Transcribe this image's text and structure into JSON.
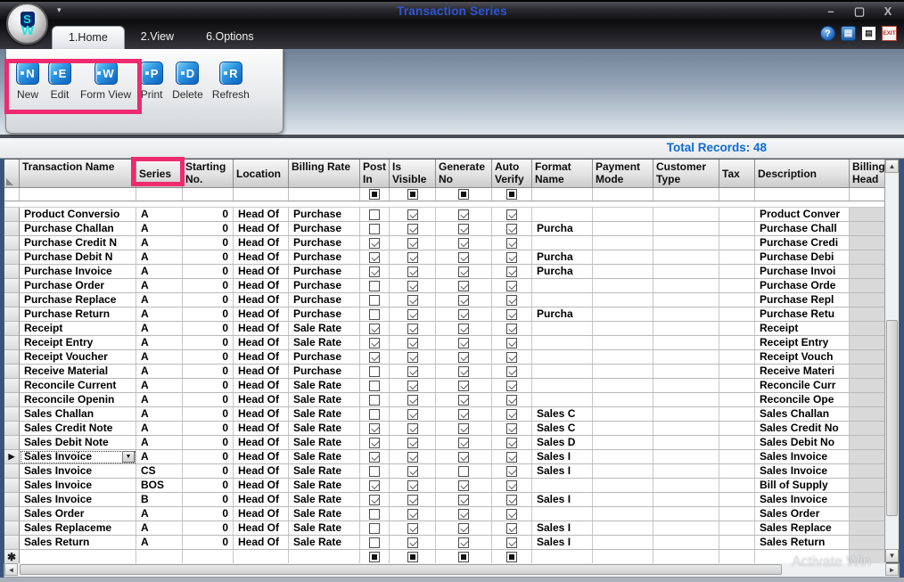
{
  "window": {
    "title": "Transaction Series",
    "controls": {
      "minimize": "–",
      "maximize": "▢",
      "close": "X"
    },
    "qat_arrow": "▾",
    "logo_letters": {
      "top": "S",
      "bottom": "W"
    }
  },
  "tabs": [
    {
      "label": "1.Home",
      "active": true
    },
    {
      "label": "2.View",
      "active": false
    },
    {
      "label": "6.Options",
      "active": false
    }
  ],
  "quick_icons": [
    {
      "name": "help-icon",
      "glyph": "?"
    },
    {
      "name": "viewer-icon",
      "glyph": "▤"
    },
    {
      "name": "document-icon",
      "glyph": "▤"
    },
    {
      "name": "exit-icon",
      "glyph": "EXIT"
    }
  ],
  "toolbar": {
    "buttons": [
      {
        "label": "New",
        "letter": "N"
      },
      {
        "label": "Edit",
        "letter": "E"
      },
      {
        "label": "Form View",
        "letter": "W"
      },
      {
        "label": "Print",
        "letter": "P"
      },
      {
        "label": "Delete",
        "letter": "D"
      },
      {
        "label": "Refresh",
        "letter": "R"
      }
    ]
  },
  "records_summary": "Total Records: 48",
  "grid": {
    "columns": [
      {
        "id": "indicator",
        "label": ""
      },
      {
        "id": "name",
        "label": "Transaction Name"
      },
      {
        "id": "series",
        "label": "Series"
      },
      {
        "id": "starting_no",
        "label": "Starting No."
      },
      {
        "id": "location",
        "label": "Location"
      },
      {
        "id": "billing_rate",
        "label": "Billing Rate"
      },
      {
        "id": "post_in",
        "label": "Post In"
      },
      {
        "id": "is_visible",
        "label": "Is Visible"
      },
      {
        "id": "generate_no",
        "label": "Generate No"
      },
      {
        "id": "auto_verify",
        "label": "Auto Verify"
      },
      {
        "id": "format_name",
        "label": "Format Name"
      },
      {
        "id": "payment_mode",
        "label": "Payment Mode"
      },
      {
        "id": "customer_type",
        "label": "Customer Type"
      },
      {
        "id": "tax",
        "label": "Tax"
      },
      {
        "id": "description",
        "label": "Description"
      },
      {
        "id": "billing_head",
        "label": "Billing Head"
      }
    ],
    "checkbox_columns": [
      "post_in",
      "is_visible",
      "generate_no",
      "auto_verify"
    ],
    "new_row_marker": "✱",
    "rows": [
      {
        "name": "Product Conversio",
        "series": "A",
        "starting_no": "0",
        "location": "Head Of",
        "billing_rate": "Purchase",
        "post_in": false,
        "is_visible": true,
        "generate_no": true,
        "auto_verify": true,
        "format_name": "",
        "payment_mode": "",
        "customer_type": "",
        "tax": "",
        "description": "Product Conver",
        "selected": false
      },
      {
        "name": "Purchase Challan",
        "series": "A",
        "starting_no": "0",
        "location": "Head Of",
        "billing_rate": "Purchase",
        "post_in": false,
        "is_visible": true,
        "generate_no": true,
        "auto_verify": true,
        "format_name": "Purcha",
        "payment_mode": "",
        "customer_type": "",
        "tax": "",
        "description": "Purchase Chall",
        "selected": false
      },
      {
        "name": "Purchase Credit N",
        "series": "A",
        "starting_no": "0",
        "location": "Head Of",
        "billing_rate": "Purchase",
        "post_in": true,
        "is_visible": true,
        "generate_no": true,
        "auto_verify": true,
        "format_name": "",
        "payment_mode": "",
        "customer_type": "",
        "tax": "",
        "description": "Purchase Credi",
        "selected": false
      },
      {
        "name": "Purchase Debit N",
        "series": "A",
        "starting_no": "0",
        "location": "Head Of",
        "billing_rate": "Purchase",
        "post_in": true,
        "is_visible": true,
        "generate_no": true,
        "auto_verify": true,
        "format_name": "Purcha",
        "payment_mode": "",
        "customer_type": "",
        "tax": "",
        "description": "Purchase Debi",
        "selected": false
      },
      {
        "name": "Purchase Invoice",
        "series": "A",
        "starting_no": "0",
        "location": "Head Of",
        "billing_rate": "Purchase",
        "post_in": true,
        "is_visible": true,
        "generate_no": true,
        "auto_verify": true,
        "format_name": "Purcha",
        "payment_mode": "",
        "customer_type": "",
        "tax": "",
        "description": "Purchase Invoi",
        "selected": false
      },
      {
        "name": "Purchase Order",
        "series": "A",
        "starting_no": "0",
        "location": "Head Of",
        "billing_rate": "Purchase",
        "post_in": false,
        "is_visible": true,
        "generate_no": true,
        "auto_verify": true,
        "format_name": "",
        "payment_mode": "",
        "customer_type": "",
        "tax": "",
        "description": "Purchase Orde",
        "selected": false
      },
      {
        "name": "Purchase Replace",
        "series": "A",
        "starting_no": "0",
        "location": "Head Of",
        "billing_rate": "Purchase",
        "post_in": false,
        "is_visible": true,
        "generate_no": true,
        "auto_verify": true,
        "format_name": "",
        "payment_mode": "",
        "customer_type": "",
        "tax": "",
        "description": "Purchase Repl",
        "selected": false
      },
      {
        "name": "Purchase Return",
        "series": "A",
        "starting_no": "0",
        "location": "Head Of",
        "billing_rate": "Purchase",
        "post_in": false,
        "is_visible": true,
        "generate_no": true,
        "auto_verify": true,
        "format_name": "Purcha",
        "payment_mode": "",
        "customer_type": "",
        "tax": "",
        "description": "Purchase Retu",
        "selected": false
      },
      {
        "name": "Receipt",
        "series": "A",
        "starting_no": "0",
        "location": "Head Of",
        "billing_rate": "Sale Rate",
        "post_in": true,
        "is_visible": true,
        "generate_no": true,
        "auto_verify": true,
        "format_name": "",
        "payment_mode": "",
        "customer_type": "",
        "tax": "",
        "description": "Receipt",
        "selected": false
      },
      {
        "name": "Receipt Entry",
        "series": "A",
        "starting_no": "0",
        "location": "Head Of",
        "billing_rate": "Sale Rate",
        "post_in": true,
        "is_visible": true,
        "generate_no": true,
        "auto_verify": true,
        "format_name": "",
        "payment_mode": "",
        "customer_type": "",
        "tax": "",
        "description": "Receipt Entry",
        "selected": false
      },
      {
        "name": "Receipt Voucher",
        "series": "A",
        "starting_no": "0",
        "location": "Head Of",
        "billing_rate": "Purchase",
        "post_in": true,
        "is_visible": true,
        "generate_no": true,
        "auto_verify": true,
        "format_name": "",
        "payment_mode": "",
        "customer_type": "",
        "tax": "",
        "description": "Receipt Vouch",
        "selected": false
      },
      {
        "name": "Receive Material",
        "series": "A",
        "starting_no": "0",
        "location": "Head Of",
        "billing_rate": "Purchase",
        "post_in": false,
        "is_visible": true,
        "generate_no": true,
        "auto_verify": true,
        "format_name": "",
        "payment_mode": "",
        "customer_type": "",
        "tax": "",
        "description": "Receive Materi",
        "selected": false
      },
      {
        "name": "Reconcile Current",
        "series": "A",
        "starting_no": "0",
        "location": "Head Of",
        "billing_rate": "Sale Rate",
        "post_in": false,
        "is_visible": true,
        "generate_no": true,
        "auto_verify": true,
        "format_name": "",
        "payment_mode": "",
        "customer_type": "",
        "tax": "",
        "description": "Reconcile Curr",
        "selected": false
      },
      {
        "name": "Reconcile Openin",
        "series": "A",
        "starting_no": "0",
        "location": "Head Of",
        "billing_rate": "Sale Rate",
        "post_in": false,
        "is_visible": true,
        "generate_no": true,
        "auto_verify": true,
        "format_name": "",
        "payment_mode": "",
        "customer_type": "",
        "tax": "",
        "description": "Reconcile Ope",
        "selected": false
      },
      {
        "name": "Sales Challan",
        "series": "A",
        "starting_no": "0",
        "location": "Head Of",
        "billing_rate": "Sale Rate",
        "post_in": false,
        "is_visible": true,
        "generate_no": true,
        "auto_verify": true,
        "format_name": "Sales C",
        "payment_mode": "",
        "customer_type": "",
        "tax": "",
        "description": "Sales Challan",
        "selected": false
      },
      {
        "name": "Sales Credit Note",
        "series": "A",
        "starting_no": "0",
        "location": "Head Of",
        "billing_rate": "Sale Rate",
        "post_in": true,
        "is_visible": true,
        "generate_no": true,
        "auto_verify": true,
        "format_name": "Sales C",
        "payment_mode": "",
        "customer_type": "",
        "tax": "",
        "description": "Sales Credit No",
        "selected": false
      },
      {
        "name": "Sales Debit Note",
        "series": "A",
        "starting_no": "0",
        "location": "Head Of",
        "billing_rate": "Sale Rate",
        "post_in": true,
        "is_visible": true,
        "generate_no": true,
        "auto_verify": true,
        "format_name": "Sales D",
        "payment_mode": "",
        "customer_type": "",
        "tax": "",
        "description": "Sales Debit No",
        "selected": false
      },
      {
        "name": "Sales Invoice",
        "series": "A",
        "starting_no": "0",
        "location": "Head Of",
        "billing_rate": "Sale Rate",
        "post_in": true,
        "is_visible": true,
        "generate_no": true,
        "auto_verify": true,
        "format_name": "Sales I",
        "payment_mode": "",
        "customer_type": "",
        "tax": "",
        "description": "Sales Invoice",
        "selected": true
      },
      {
        "name": "Sales Invoice",
        "series": "CS",
        "starting_no": "0",
        "location": "Head Of",
        "billing_rate": "Sale Rate",
        "post_in": false,
        "is_visible": true,
        "generate_no": false,
        "auto_verify": true,
        "format_name": "Sales I",
        "payment_mode": "",
        "customer_type": "",
        "tax": "",
        "description": "Sales Invoice",
        "selected": false
      },
      {
        "name": "Sales Invoice",
        "series": "BOS",
        "starting_no": "0",
        "location": "Head Of",
        "billing_rate": "Sale Rate",
        "post_in": true,
        "is_visible": true,
        "generate_no": true,
        "auto_verify": true,
        "format_name": "",
        "payment_mode": "",
        "customer_type": "",
        "tax": "",
        "description": "Bill of Supply",
        "selected": false
      },
      {
        "name": "Sales Invoice",
        "series": "B",
        "starting_no": "0",
        "location": "Head Of",
        "billing_rate": "Sale Rate",
        "post_in": true,
        "is_visible": true,
        "generate_no": true,
        "auto_verify": true,
        "format_name": "Sales I",
        "payment_mode": "",
        "customer_type": "",
        "tax": "",
        "description": "Sales Invoice",
        "selected": false
      },
      {
        "name": "Sales Order",
        "series": "A",
        "starting_no": "0",
        "location": "Head Of",
        "billing_rate": "Sale Rate",
        "post_in": false,
        "is_visible": true,
        "generate_no": true,
        "auto_verify": true,
        "format_name": "",
        "payment_mode": "",
        "customer_type": "",
        "tax": "",
        "description": "Sales Order",
        "selected": false
      },
      {
        "name": "Sales Replaceme",
        "series": "A",
        "starting_no": "0",
        "location": "Head Of",
        "billing_rate": "Sale Rate",
        "post_in": false,
        "is_visible": true,
        "generate_no": true,
        "auto_verify": true,
        "format_name": "Sales I",
        "payment_mode": "",
        "customer_type": "",
        "tax": "",
        "description": "Sales Replace",
        "selected": false
      },
      {
        "name": "Sales Return",
        "series": "A",
        "starting_no": "0",
        "location": "Head Of",
        "billing_rate": "Sale Rate",
        "post_in": false,
        "is_visible": true,
        "generate_no": true,
        "auto_verify": true,
        "format_name": "Sales I",
        "payment_mode": "",
        "customer_type": "",
        "tax": "",
        "description": "Sales Return",
        "selected": false
      }
    ]
  },
  "annotations": {
    "highlight_color": "#ef2a6e",
    "targets": [
      "new-edit-formview-buttons",
      "series-column-header"
    ]
  },
  "watermark": "Activate Win",
  "colors": {
    "title_text": "#2e55d4",
    "records_text": "#0e6bd4",
    "toolbar_icon_blue": "#1583d6",
    "annotation_pink": "#ef2a6e"
  }
}
